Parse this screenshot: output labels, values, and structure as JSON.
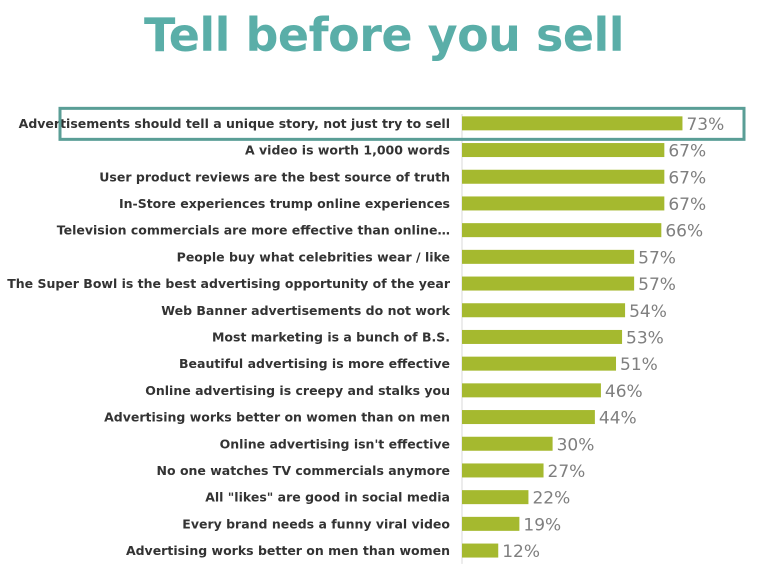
{
  "title": "Tell before you sell",
  "colors": {
    "title": "#5aaea8",
    "bar": "#a5b92f",
    "highlight": "#5a9e96",
    "label": "#333333",
    "value": "#7f7f7f"
  },
  "chart_data": {
    "type": "bar",
    "orientation": "horizontal",
    "categories": [
      "Advertisements should tell a unique story, not just try to sell",
      "A video is worth 1,000 words",
      "User product reviews are the best source of truth",
      "In-Store experiences trump online experiences",
      "Television commercials are more effective than online…",
      "People buy what celebrities wear / like",
      "The Super Bowl is the best advertising opportunity of the year",
      "Web Banner advertisements do not work",
      "Most marketing is a bunch of B.S.",
      "Beautiful advertising is more effective",
      "Online advertising is creepy and stalks you",
      "Advertising works better on women than on men",
      "Online advertising isn't effective",
      "No one watches TV commercials anymore",
      "All \"likes\" are good in social media",
      "Every brand needs a funny viral video",
      "Advertising works better on men than women"
    ],
    "values": [
      73,
      67,
      67,
      67,
      66,
      57,
      57,
      54,
      53,
      51,
      46,
      44,
      30,
      27,
      22,
      19,
      12
    ],
    "value_labels": [
      "73%",
      "67%",
      "67%",
      "67%",
      "66%",
      "57%",
      "57%",
      "54%",
      "53%",
      "51%",
      "46%",
      "44%",
      "30%",
      "27%",
      "22%",
      "19%",
      "12%"
    ],
    "highlighted_index": 0,
    "xlim": [
      0,
      100
    ],
    "grid": false,
    "legend": "none"
  }
}
